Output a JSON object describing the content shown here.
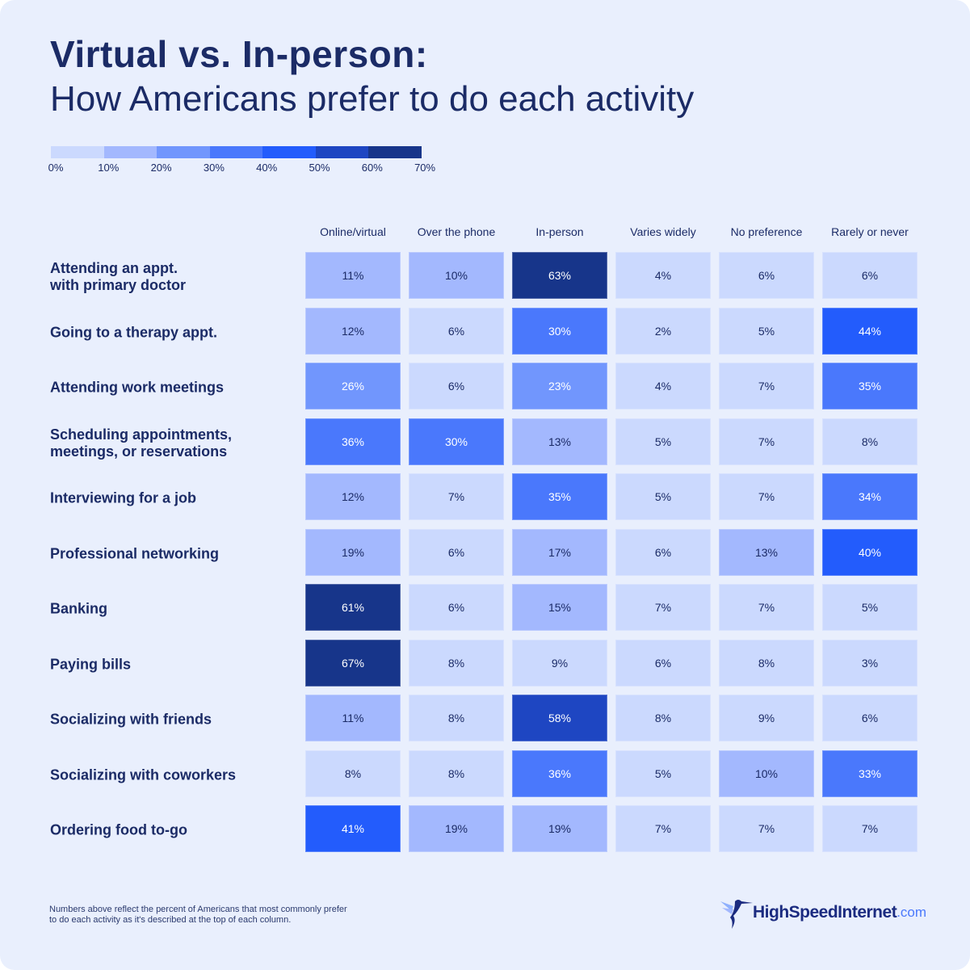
{
  "chart_data": {
    "type": "heatmap",
    "title": "Virtual vs. In-person:",
    "subtitle": "How Americans prefer to do each activity",
    "legend": {
      "ticks": [
        "0%",
        "10%",
        "20%",
        "30%",
        "40%",
        "50%",
        "60%",
        "70%"
      ],
      "colors": [
        "#cbd9fe",
        "#a3b8fe",
        "#7196fd",
        "#4a78fc",
        "#235cfc",
        "#1e46c2",
        "#17358a"
      ],
      "placement": "top-left"
    },
    "columns": [
      "Online/virtual",
      "Over the phone",
      "In-person",
      "Varies widely",
      "No preference",
      "Rarely or never"
    ],
    "rows": [
      {
        "label": "Attending an appt.\nwith primary doctor",
        "values": [
          11,
          10,
          63,
          4,
          6,
          6
        ]
      },
      {
        "label": "Going to a therapy appt.",
        "values": [
          12,
          6,
          30,
          2,
          5,
          44
        ]
      },
      {
        "label": "Attending work meetings",
        "values": [
          26,
          6,
          23,
          4,
          7,
          35
        ]
      },
      {
        "label": "Scheduling appointments,\nmeetings, or reservations",
        "values": [
          36,
          30,
          13,
          5,
          7,
          8
        ]
      },
      {
        "label": "Interviewing for a job",
        "values": [
          12,
          7,
          35,
          5,
          7,
          34
        ]
      },
      {
        "label": "Professional networking",
        "values": [
          19,
          6,
          17,
          6,
          13,
          40
        ]
      },
      {
        "label": "Banking",
        "values": [
          61,
          6,
          15,
          7,
          7,
          5
        ]
      },
      {
        "label": "Paying bills",
        "values": [
          67,
          8,
          9,
          6,
          8,
          3
        ]
      },
      {
        "label": "Socializing with friends",
        "values": [
          11,
          8,
          58,
          8,
          9,
          6
        ]
      },
      {
        "label": "Socializing with coworkers",
        "values": [
          8,
          8,
          36,
          5,
          10,
          33
        ]
      },
      {
        "label": "Ordering food to-go",
        "values": [
          41,
          19,
          19,
          7,
          7,
          7
        ]
      }
    ],
    "unit": "%"
  },
  "footnote": "Numbers above reflect the percent of Americans that most commonly prefer to do each activity as it's described at the top of each column.",
  "logo": {
    "word": "HighSpeedInternet",
    "suffix": ".com"
  },
  "colors": {
    "text": "#1b2b66",
    "background": "#e9effd"
  }
}
